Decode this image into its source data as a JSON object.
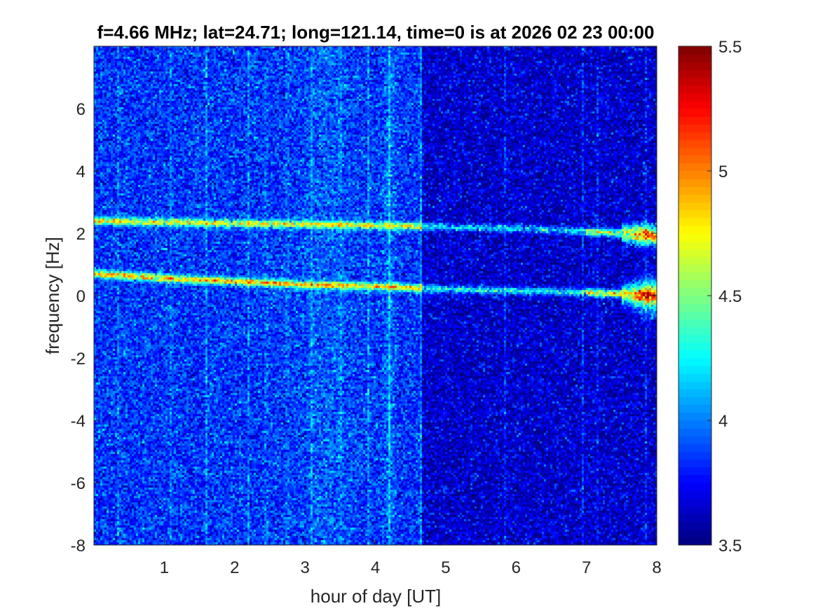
{
  "chart_data": {
    "type": "heatmap",
    "title": "f=4.66 MHz;  lat=24.71; long=121.14, time=0 is at 2026 02 23 00:00",
    "xlabel": "hour of day [UT]",
    "ylabel": "frequency [Hz]",
    "xlim": [
      0,
      8
    ],
    "ylim": [
      -8,
      8
    ],
    "x_ticks": [
      1,
      2,
      3,
      4,
      5,
      6,
      7,
      8
    ],
    "x_tick_labels": [
      "1",
      "2",
      "3",
      "4",
      "5",
      "6",
      "7",
      "8"
    ],
    "y_ticks": [
      -8,
      -6,
      -4,
      -2,
      0,
      2,
      4,
      6
    ],
    "y_tick_labels": [
      "-8",
      "-6",
      "-4",
      "-2",
      "0",
      "2",
      "4",
      "6"
    ],
    "colorbar": {
      "min": 3.5,
      "max": 5.5,
      "ticks": [
        3.5,
        4,
        4.5,
        5,
        5.5
      ],
      "tick_labels": [
        "3.5",
        "4",
        "4.5",
        "5",
        "5.5"
      ],
      "colormap": "jet"
    },
    "background_level_before_hour_4_6": 3.85,
    "background_level_after_hour_4_6": 3.65,
    "traces": [
      {
        "name": "upper trace",
        "points": [
          [
            0.0,
            2.4
          ],
          [
            1.0,
            2.35
          ],
          [
            2.5,
            2.3
          ],
          [
            4.0,
            2.25
          ],
          [
            5.0,
            2.2
          ],
          [
            6.0,
            2.15
          ],
          [
            7.0,
            2.05
          ],
          [
            7.5,
            2.0
          ],
          [
            8.0,
            1.9
          ]
        ],
        "peak_level": 5.3
      },
      {
        "name": "lower trace",
        "points": [
          [
            0.0,
            0.7
          ],
          [
            1.0,
            0.55
          ],
          [
            2.0,
            0.45
          ],
          [
            3.0,
            0.35
          ],
          [
            4.0,
            0.3
          ],
          [
            5.0,
            0.2
          ],
          [
            6.0,
            0.15
          ],
          [
            7.0,
            0.1
          ],
          [
            8.0,
            0.0
          ]
        ],
        "peak_level": 5.5
      }
    ],
    "vertical_streaks_hours": [
      0.35,
      1.1,
      1.6,
      2.2,
      2.45,
      2.75,
      3.1,
      3.5,
      3.9,
      4.2,
      4.65,
      5.85,
      6.95,
      7.15,
      7.85
    ]
  },
  "colors": {
    "axis": "#262626",
    "title": "#000000",
    "background": "#ffffff"
  }
}
